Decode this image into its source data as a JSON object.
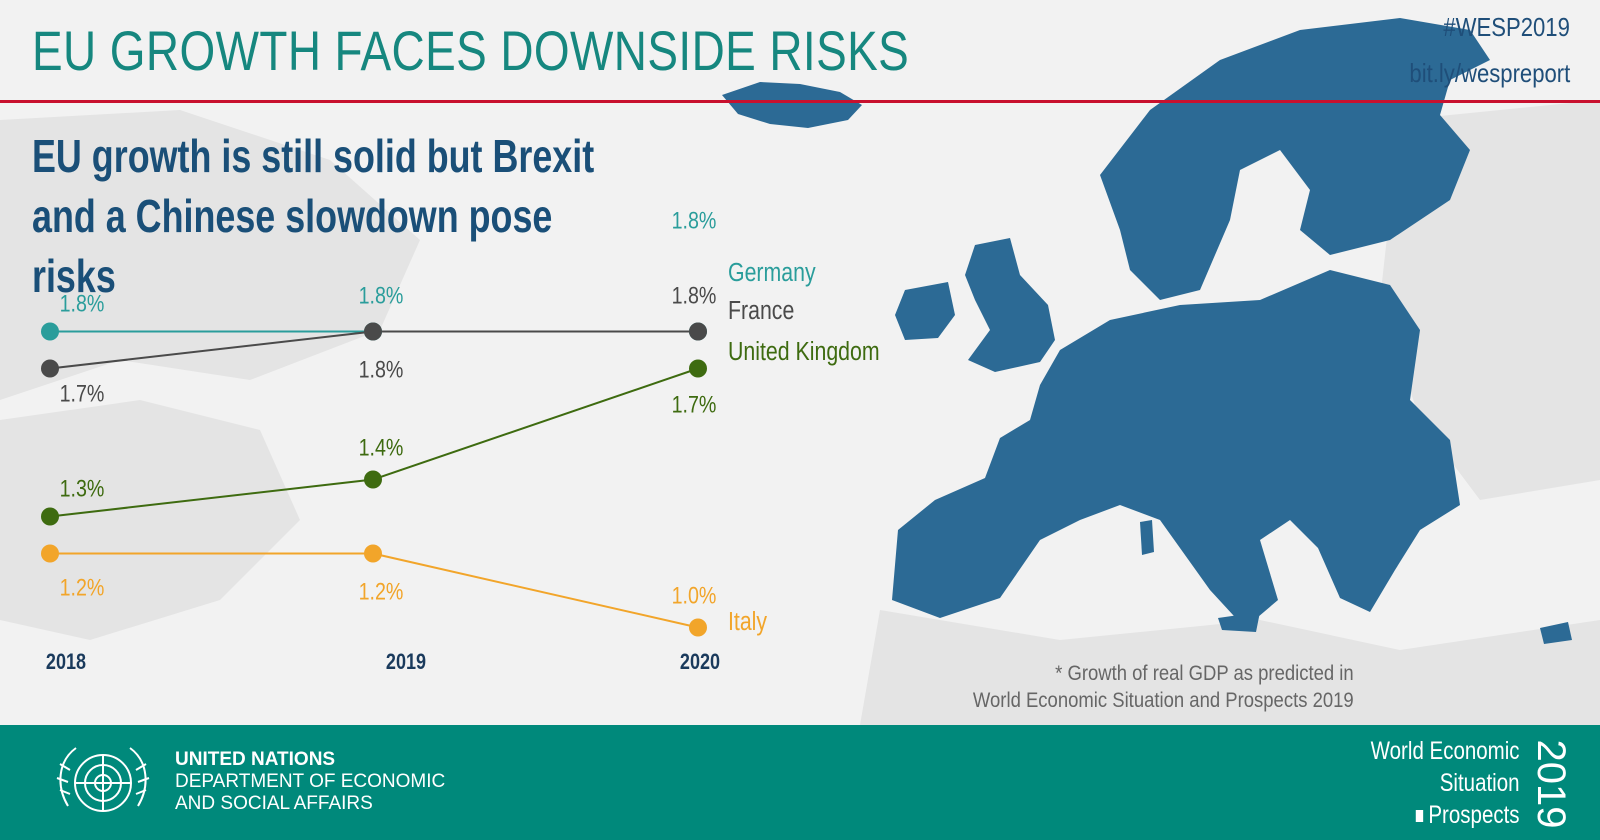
{
  "header": {
    "title": "EU GROWTH FACES DOWNSIDE RISKS",
    "hashtag": "#WESP2019",
    "link": "bit.ly/wespreport"
  },
  "subtitle": "EU growth is still solid but Brexit and a Chinese slowdown pose risks",
  "colors": {
    "accent": "#16877f",
    "rule": "#c8102e",
    "map": "#2c6a95",
    "footer": "#00897b",
    "germany": "#2a9d9b",
    "france": "#4a4a4a",
    "uk": "#3e6b10",
    "italy": "#f2a52a"
  },
  "chart_data": {
    "type": "line",
    "x": [
      "2018",
      "2019",
      "2020"
    ],
    "series": [
      {
        "name": "Germany",
        "values": [
          1.8,
          1.8,
          1.8
        ],
        "labels": [
          "1.8%",
          "1.8%",
          "1.8%"
        ],
        "color": "#2a9d9b"
      },
      {
        "name": "France",
        "values": [
          1.7,
          1.8,
          1.8
        ],
        "labels": [
          "1.7%",
          "1.8%",
          "1.8%"
        ],
        "color": "#4a4a4a"
      },
      {
        "name": "United Kingdom",
        "values": [
          1.3,
          1.4,
          1.7
        ],
        "labels": [
          "1.3%",
          "1.4%",
          "1.7%"
        ],
        "color": "#3e6b10"
      },
      {
        "name": "Italy",
        "values": [
          1.2,
          1.2,
          1.0
        ],
        "labels": [
          "1.2%",
          "1.2%",
          "1.0%"
        ],
        "color": "#f2a52a"
      }
    ],
    "ylim": [
      0.9,
      1.85
    ],
    "grid": false,
    "legend": "right, next to line ends"
  },
  "footnote": {
    "line1": "* Growth of real GDP as predicted in",
    "line2": "World Economic Situation and Prospects 2019"
  },
  "footer": {
    "org_name": "UNITED NATIONS",
    "dept_line1": "DEPARTMENT OF ECONOMIC",
    "dept_line2": "AND SOCIAL AFFAIRS",
    "wesp_line1": "World Economic",
    "wesp_line2": "Situation",
    "wesp_line3": "Prospects",
    "wesp_year": "2019"
  }
}
